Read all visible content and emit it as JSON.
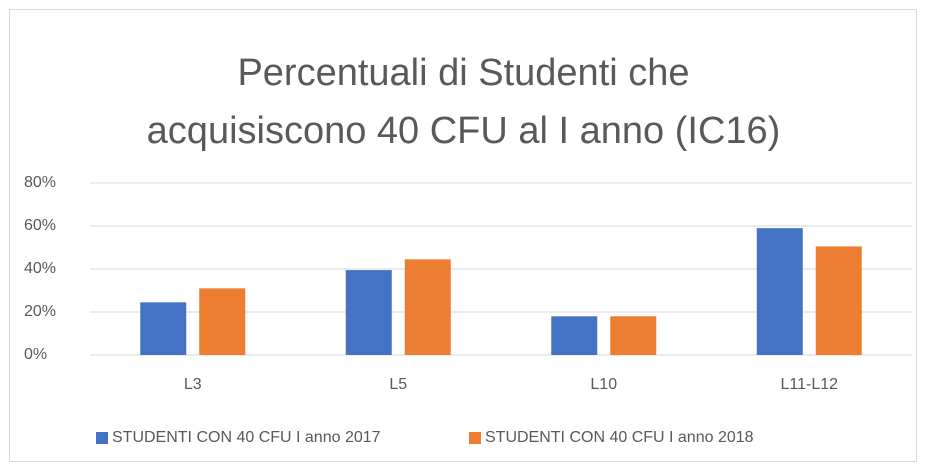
{
  "chart_data": {
    "type": "bar",
    "title": "Percentuali di Studenti che acquisiscono 40 CFU al I anno (IC16)",
    "categories": [
      "L3",
      "L5",
      "L10",
      "L11-L12"
    ],
    "series": [
      {
        "name": "STUDENTI CON 40 CFU I anno 2017",
        "color": "#4472c4",
        "values": [
          24.5,
          39.5,
          18,
          59
        ]
      },
      {
        "name": "STUDENTI CON 40 CFU I anno 2018",
        "color": "#ed7d31",
        "values": [
          31,
          44.5,
          18,
          50.5
        ]
      }
    ],
    "ylim": [
      0,
      80
    ],
    "yticks": [
      {
        "value": 0,
        "label": "0%"
      },
      {
        "value": 20,
        "label": "20%"
      },
      {
        "value": 40,
        "label": "40%"
      },
      {
        "value": 60,
        "label": "60%"
      },
      {
        "value": 80,
        "label": "80%"
      }
    ],
    "grid": true,
    "legend": "bottom"
  }
}
